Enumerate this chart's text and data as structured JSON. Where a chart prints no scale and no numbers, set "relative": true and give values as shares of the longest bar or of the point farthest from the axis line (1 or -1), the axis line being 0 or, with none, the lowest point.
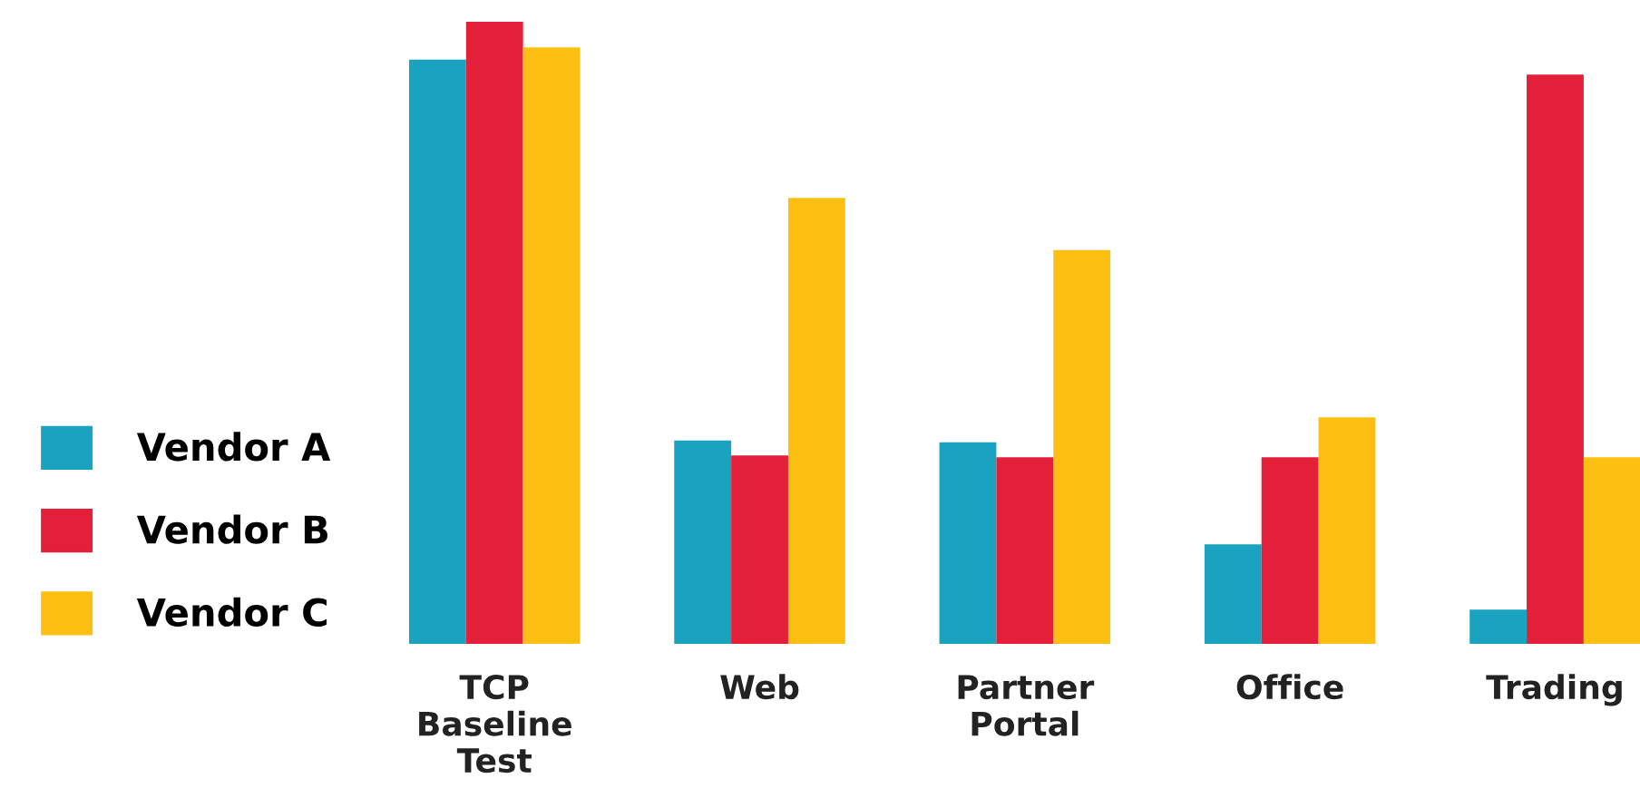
{
  "chart_data": {
    "type": "bar",
    "relative": true,
    "legend": "left",
    "grid": false,
    "categories": [
      "TCP\nBaseline\nTest",
      "Web",
      "Partner\nPortal",
      "Office",
      "Trading"
    ],
    "series": [
      {
        "name": "Vendor A",
        "color": "#1aa3c1",
        "values": [
          0.939,
          0.327,
          0.324,
          0.16,
          0.055
        ]
      },
      {
        "name": "Vendor B",
        "color": "#e31f3a",
        "values": [
          1,
          0.303,
          0.3,
          0.3,
          0.915
        ]
      },
      {
        "name": "Vendor C",
        "color": "#fdc012",
        "values": [
          0.959,
          0.717,
          0.633,
          0.364,
          0.3
        ]
      }
    ]
  }
}
